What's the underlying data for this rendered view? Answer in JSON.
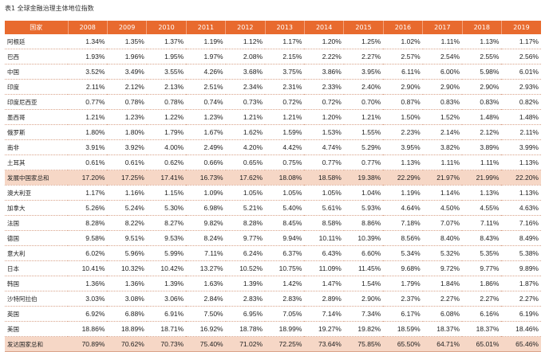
{
  "caption": "表1 全球金融治理主体地位指数",
  "table": {
    "headers": [
      "国家",
      "2008",
      "2009",
      "2010",
      "2011",
      "2012",
      "2013",
      "2014",
      "2015",
      "2016",
      "2017",
      "2018",
      "2019"
    ],
    "rows": [
      {
        "name": "阿根廷",
        "values": [
          "1.34%",
          "1.35%",
          "1.37%",
          "1.19%",
          "1.12%",
          "1.17%",
          "1.20%",
          "1.25%",
          "1.02%",
          "1.11%",
          "1.13%",
          "1.17%"
        ],
        "highlight": false
      },
      {
        "name": "巴西",
        "values": [
          "1.93%",
          "1.96%",
          "1.95%",
          "1.97%",
          "2.08%",
          "2.15%",
          "2.22%",
          "2.27%",
          "2.57%",
          "2.54%",
          "2.55%",
          "2.56%"
        ],
        "highlight": false
      },
      {
        "name": "中国",
        "values": [
          "3.52%",
          "3.49%",
          "3.55%",
          "4.26%",
          "3.68%",
          "3.75%",
          "3.86%",
          "3.95%",
          "6.11%",
          "6.00%",
          "5.98%",
          "6.01%"
        ],
        "highlight": false
      },
      {
        "name": "印度",
        "values": [
          "2.11%",
          "2.12%",
          "2.13%",
          "2.51%",
          "2.34%",
          "2.31%",
          "2.33%",
          "2.40%",
          "2.90%",
          "2.90%",
          "2.90%",
          "2.93%"
        ],
        "highlight": false
      },
      {
        "name": "印度尼西亚",
        "values": [
          "0.77%",
          "0.78%",
          "0.78%",
          "0.74%",
          "0.73%",
          "0.72%",
          "0.72%",
          "0.70%",
          "0.87%",
          "0.83%",
          "0.83%",
          "0.82%"
        ],
        "highlight": false
      },
      {
        "name": "墨西哥",
        "values": [
          "1.21%",
          "1.23%",
          "1.22%",
          "1.23%",
          "1.21%",
          "1.21%",
          "1.20%",
          "1.21%",
          "1.50%",
          "1.52%",
          "1.48%",
          "1.48%"
        ],
        "highlight": false
      },
      {
        "name": "俄罗斯",
        "values": [
          "1.80%",
          "1.80%",
          "1.79%",
          "1.67%",
          "1.62%",
          "1.59%",
          "1.53%",
          "1.55%",
          "2.23%",
          "2.14%",
          "2.12%",
          "2.11%"
        ],
        "highlight": false
      },
      {
        "name": "南非",
        "values": [
          "3.91%",
          "3.92%",
          "4.00%",
          "2.49%",
          "4.20%",
          "4.42%",
          "4.74%",
          "5.29%",
          "3.95%",
          "3.82%",
          "3.89%",
          "3.99%"
        ],
        "highlight": false
      },
      {
        "name": "土耳其",
        "values": [
          "0.61%",
          "0.61%",
          "0.62%",
          "0.66%",
          "0.65%",
          "0.75%",
          "0.77%",
          "0.77%",
          "1.13%",
          "1.11%",
          "1.11%",
          "1.13%"
        ],
        "highlight": false
      },
      {
        "name": "发展中国家总和",
        "values": [
          "17.20%",
          "17.25%",
          "17.41%",
          "16.73%",
          "17.62%",
          "18.08%",
          "18.58%",
          "19.38%",
          "22.29%",
          "21.97%",
          "21.99%",
          "22.20%"
        ],
        "highlight": true
      },
      {
        "name": "澳大利亚",
        "values": [
          "1.17%",
          "1.16%",
          "1.15%",
          "1.09%",
          "1.05%",
          "1.05%",
          "1.05%",
          "1.04%",
          "1.19%",
          "1.14%",
          "1.13%",
          "1.13%"
        ],
        "highlight": false
      },
      {
        "name": "加拿大",
        "values": [
          "5.26%",
          "5.24%",
          "5.30%",
          "6.98%",
          "5.21%",
          "5.40%",
          "5.61%",
          "5.93%",
          "4.64%",
          "4.50%",
          "4.55%",
          "4.63%"
        ],
        "highlight": false
      },
      {
        "name": "法国",
        "values": [
          "8.28%",
          "8.22%",
          "8.27%",
          "9.82%",
          "8.28%",
          "8.45%",
          "8.58%",
          "8.86%",
          "7.18%",
          "7.07%",
          "7.11%",
          "7.16%"
        ],
        "highlight": false
      },
      {
        "name": "德国",
        "values": [
          "9.58%",
          "9.51%",
          "9.53%",
          "8.24%",
          "9.77%",
          "9.94%",
          "10.11%",
          "10.39%",
          "8.56%",
          "8.40%",
          "8.43%",
          "8.49%"
        ],
        "highlight": false
      },
      {
        "name": "意大利",
        "values": [
          "6.02%",
          "5.96%",
          "5.99%",
          "7.11%",
          "6.24%",
          "6.37%",
          "6.43%",
          "6.60%",
          "5.34%",
          "5.32%",
          "5.35%",
          "5.38%"
        ],
        "highlight": false
      },
      {
        "name": "日本",
        "values": [
          "10.41%",
          "10.32%",
          "10.42%",
          "13.27%",
          "10.52%",
          "10.75%",
          "11.09%",
          "11.45%",
          "9.68%",
          "9.72%",
          "9.77%",
          "9.89%"
        ],
        "highlight": false
      },
      {
        "name": "韩国",
        "values": [
          "1.36%",
          "1.36%",
          "1.39%",
          "1.63%",
          "1.39%",
          "1.42%",
          "1.47%",
          "1.54%",
          "1.79%",
          "1.84%",
          "1.86%",
          "1.87%"
        ],
        "highlight": false
      },
      {
        "name": "沙特阿拉伯",
        "values": [
          "3.03%",
          "3.08%",
          "3.06%",
          "2.84%",
          "2.83%",
          "2.83%",
          "2.89%",
          "2.90%",
          "2.37%",
          "2.27%",
          "2.27%",
          "2.27%"
        ],
        "highlight": false
      },
      {
        "name": "英国",
        "values": [
          "6.92%",
          "6.88%",
          "6.91%",
          "7.50%",
          "6.95%",
          "7.05%",
          "7.14%",
          "7.34%",
          "6.17%",
          "6.08%",
          "6.16%",
          "6.19%"
        ],
        "highlight": false
      },
      {
        "name": "美国",
        "values": [
          "18.86%",
          "18.89%",
          "18.71%",
          "16.92%",
          "18.78%",
          "18.99%",
          "19.27%",
          "19.82%",
          "18.59%",
          "18.37%",
          "18.37%",
          "18.46%"
        ],
        "highlight": false
      },
      {
        "name": "发达国家总和",
        "values": [
          "70.89%",
          "70.62%",
          "70.73%",
          "75.40%",
          "71.02%",
          "72.25%",
          "73.64%",
          "75.85%",
          "65.50%",
          "64.71%",
          "65.01%",
          "65.46%"
        ],
        "highlight": true
      }
    ]
  }
}
